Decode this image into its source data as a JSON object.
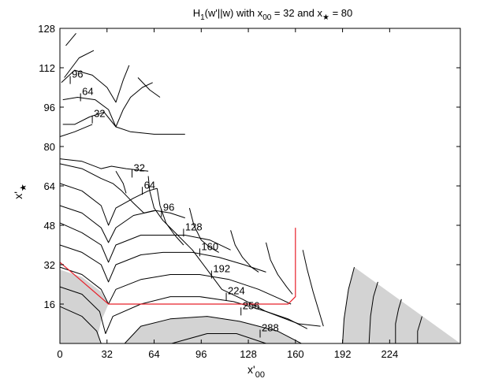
{
  "chart_data": {
    "type": "contour",
    "title_parts": {
      "t1": "H",
      "t1_sub": "1",
      "t2": "(w'||w) with x",
      "t2_sub": "00",
      "t3": " = 32 and x",
      "t3_sub": "★",
      "t4": " = 80"
    },
    "xlabel_parts": {
      "main": "x'",
      "sub": "00"
    },
    "ylabel_parts": {
      "main": "x'",
      "sub": "★"
    },
    "xlim": [
      0,
      272
    ],
    "ylim": [
      0,
      128
    ],
    "xticks": [
      0,
      32,
      64,
      96,
      128,
      160,
      192,
      224
    ],
    "yticks": [
      16,
      32,
      48,
      64,
      80,
      96,
      112,
      128
    ],
    "grid": false,
    "colors": {
      "contour": "#000000",
      "path": "#e8202a",
      "shade": "#d3d3d3"
    },
    "contour_labels": [
      {
        "text": "96",
        "x": 7,
        "y": 107
      },
      {
        "text": "64",
        "x": 14,
        "y": 100
      },
      {
        "text": "32",
        "x": 22,
        "y": 91
      },
      {
        "text": "32",
        "x": 49,
        "y": 69
      },
      {
        "text": "64",
        "x": 56,
        "y": 62
      },
      {
        "text": "96",
        "x": 69,
        "y": 53
      },
      {
        "text": "128",
        "x": 84,
        "y": 45
      },
      {
        "text": "160",
        "x": 95,
        "y": 37
      },
      {
        "text": "192",
        "x": 103,
        "y": 28
      },
      {
        "text": "224",
        "x": 113,
        "y": 19
      },
      {
        "text": "256",
        "x": 123,
        "y": 13
      },
      {
        "text": "288",
        "x": 136,
        "y": 4
      }
    ],
    "path": [
      [
        0,
        33
      ],
      [
        33,
        16
      ],
      [
        155,
        16
      ],
      [
        160,
        19
      ],
      [
        160,
        47
      ]
    ],
    "contours": [
      [
        [
          4,
          121
        ],
        [
          11,
          126
        ]
      ],
      [
        [
          3,
          108
        ],
        [
          13,
          116
        ],
        [
          23,
          119
        ]
      ],
      [
        [
          1,
          106
        ],
        [
          10,
          111
        ],
        [
          22,
          109
        ],
        [
          32,
          104
        ],
        [
          38,
          98
        ],
        [
          43,
          107
        ],
        [
          47,
          113
        ]
      ],
      [
        [
          2,
          99
        ],
        [
          12,
          100
        ],
        [
          24,
          99
        ],
        [
          33,
          95
        ],
        [
          38,
          88
        ],
        [
          43,
          95
        ],
        [
          48,
          100
        ],
        [
          56,
          104
        ],
        [
          63,
          106
        ]
      ],
      [
        [
          2,
          89
        ],
        [
          10,
          89
        ],
        [
          20,
          92
        ],
        [
          30,
          94
        ],
        [
          38,
          88
        ],
        [
          48,
          86
        ],
        [
          64,
          85
        ],
        [
          85,
          85
        ]
      ],
      [
        [
          0,
          84
        ],
        [
          10,
          86
        ],
        [
          22,
          89
        ]
      ],
      [
        [
          53,
          108
        ],
        [
          61,
          103
        ],
        [
          68,
          100
        ]
      ],
      [
        [
          0,
          75
        ],
        [
          15,
          74
        ],
        [
          28,
          71
        ],
        [
          35,
          72
        ],
        [
          45,
          71
        ],
        [
          60,
          70
        ]
      ],
      [
        [
          0,
          73
        ],
        [
          15,
          71
        ],
        [
          28,
          67
        ],
        [
          36,
          65
        ],
        [
          42,
          62
        ],
        [
          50,
          57
        ],
        [
          57,
          53
        ],
        [
          64,
          54
        ]
      ],
      [
        [
          45,
          61
        ],
        [
          43,
          65
        ],
        [
          40,
          68
        ],
        [
          38,
          70
        ]
      ],
      [
        [
          60,
          68
        ],
        [
          61,
          62
        ],
        [
          64,
          55
        ],
        [
          70,
          50
        ],
        [
          80,
          44
        ],
        [
          90,
          38
        ],
        [
          100,
          30
        ],
        [
          110,
          22
        ],
        [
          124,
          18
        ],
        [
          140,
          13
        ],
        [
          155,
          10
        ],
        [
          168,
          6
        ]
      ],
      [
        [
          0,
          65
        ],
        [
          15,
          62
        ],
        [
          28,
          56
        ],
        [
          33,
          48
        ],
        [
          38,
          55
        ],
        [
          50,
          59
        ],
        [
          60,
          62
        ],
        [
          66,
          63
        ]
      ],
      [
        [
          66,
          63
        ],
        [
          68,
          56
        ],
        [
          72,
          49
        ],
        [
          78,
          44
        ],
        [
          84,
          40
        ]
      ],
      [
        [
          0,
          56
        ],
        [
          15,
          53
        ],
        [
          28,
          47
        ],
        [
          33,
          41
        ],
        [
          38,
          47
        ],
        [
          50,
          52
        ],
        [
          65,
          54
        ],
        [
          75,
          53
        ],
        [
          85,
          51
        ]
      ],
      [
        [
          88,
          55
        ],
        [
          91,
          48
        ],
        [
          96,
          42
        ],
        [
          102,
          39
        ],
        [
          108,
          37
        ]
      ],
      [
        [
          0,
          49
        ],
        [
          15,
          45
        ],
        [
          28,
          40
        ],
        [
          33,
          33
        ],
        [
          38,
          40
        ],
        [
          55,
          44
        ],
        [
          70,
          44
        ],
        [
          85,
          44
        ],
        [
          102,
          42
        ],
        [
          116,
          38
        ]
      ],
      [
        [
          116,
          46
        ],
        [
          119,
          40
        ],
        [
          124,
          35
        ],
        [
          130,
          31
        ],
        [
          135,
          29
        ]
      ],
      [
        [
          0,
          40
        ],
        [
          15,
          37
        ],
        [
          28,
          32
        ],
        [
          33,
          25
        ],
        [
          38,
          32
        ],
        [
          55,
          36
        ],
        [
          70,
          37
        ],
        [
          90,
          37
        ],
        [
          108,
          35
        ],
        [
          125,
          32
        ],
        [
          140,
          29
        ]
      ],
      [
        [
          140,
          41
        ],
        [
          143,
          34
        ],
        [
          148,
          28
        ],
        [
          154,
          23
        ],
        [
          158,
          20
        ]
      ],
      [
        [
          0,
          31
        ],
        [
          15,
          28
        ],
        [
          28,
          22
        ],
        [
          33,
          16
        ],
        [
          38,
          22
        ],
        [
          55,
          26
        ],
        [
          75,
          28
        ],
        [
          95,
          28
        ],
        [
          115,
          26
        ],
        [
          135,
          22
        ],
        [
          150,
          18
        ],
        [
          157,
          16
        ]
      ],
      [
        [
          165,
          38
        ],
        [
          168,
          30
        ],
        [
          172,
          21
        ],
        [
          176,
          13
        ],
        [
          179,
          7
        ]
      ],
      [
        [
          0,
          23
        ],
        [
          15,
          20
        ],
        [
          27,
          13
        ],
        [
          31,
          4
        ],
        [
          36,
          11
        ],
        [
          55,
          16
        ],
        [
          75,
          19
        ],
        [
          95,
          19
        ],
        [
          118,
          17
        ],
        [
          140,
          13
        ],
        [
          162,
          8
        ],
        [
          177,
          7
        ]
      ],
      [
        [
          0,
          15
        ],
        [
          15,
          11
        ],
        [
          25,
          5
        ],
        [
          28,
          0
        ]
      ],
      [
        [
          44,
          0
        ],
        [
          55,
          7
        ],
        [
          75,
          10
        ],
        [
          100,
          11
        ],
        [
          122,
          9
        ],
        [
          148,
          5
        ],
        [
          164,
          0
        ]
      ],
      [
        [
          76,
          0
        ],
        [
          100,
          4
        ],
        [
          120,
          4
        ],
        [
          140,
          0
        ]
      ],
      [
        [
          192,
          0
        ],
        [
          193,
          10
        ],
        [
          196,
          22
        ],
        [
          200,
          31
        ]
      ],
      [
        [
          210,
          0
        ],
        [
          211,
          11
        ],
        [
          213,
          19
        ],
        [
          216,
          25
        ]
      ],
      [
        [
          228,
          0
        ],
        [
          228,
          8
        ],
        [
          230,
          14
        ],
        [
          232,
          18
        ]
      ],
      [
        [
          243,
          0
        ],
        [
          243,
          5
        ],
        [
          245,
          9
        ],
        [
          246,
          11
        ]
      ]
    ],
    "shaded_regions": [
      [
        [
          0,
          30
        ],
        [
          15,
          27
        ],
        [
          28,
          21
        ],
        [
          33,
          16
        ],
        [
          28,
          9
        ],
        [
          26,
          4
        ],
        [
          28,
          0
        ],
        [
          0,
          0
        ]
      ],
      [
        [
          44,
          0
        ],
        [
          55,
          7
        ],
        [
          75,
          10
        ],
        [
          100,
          11
        ],
        [
          122,
          9
        ],
        [
          148,
          5
        ],
        [
          164,
          0
        ]
      ],
      [
        [
          192,
          0
        ],
        [
          193,
          10
        ],
        [
          196,
          22
        ],
        [
          200,
          31
        ],
        [
          272,
          0
        ]
      ]
    ]
  }
}
